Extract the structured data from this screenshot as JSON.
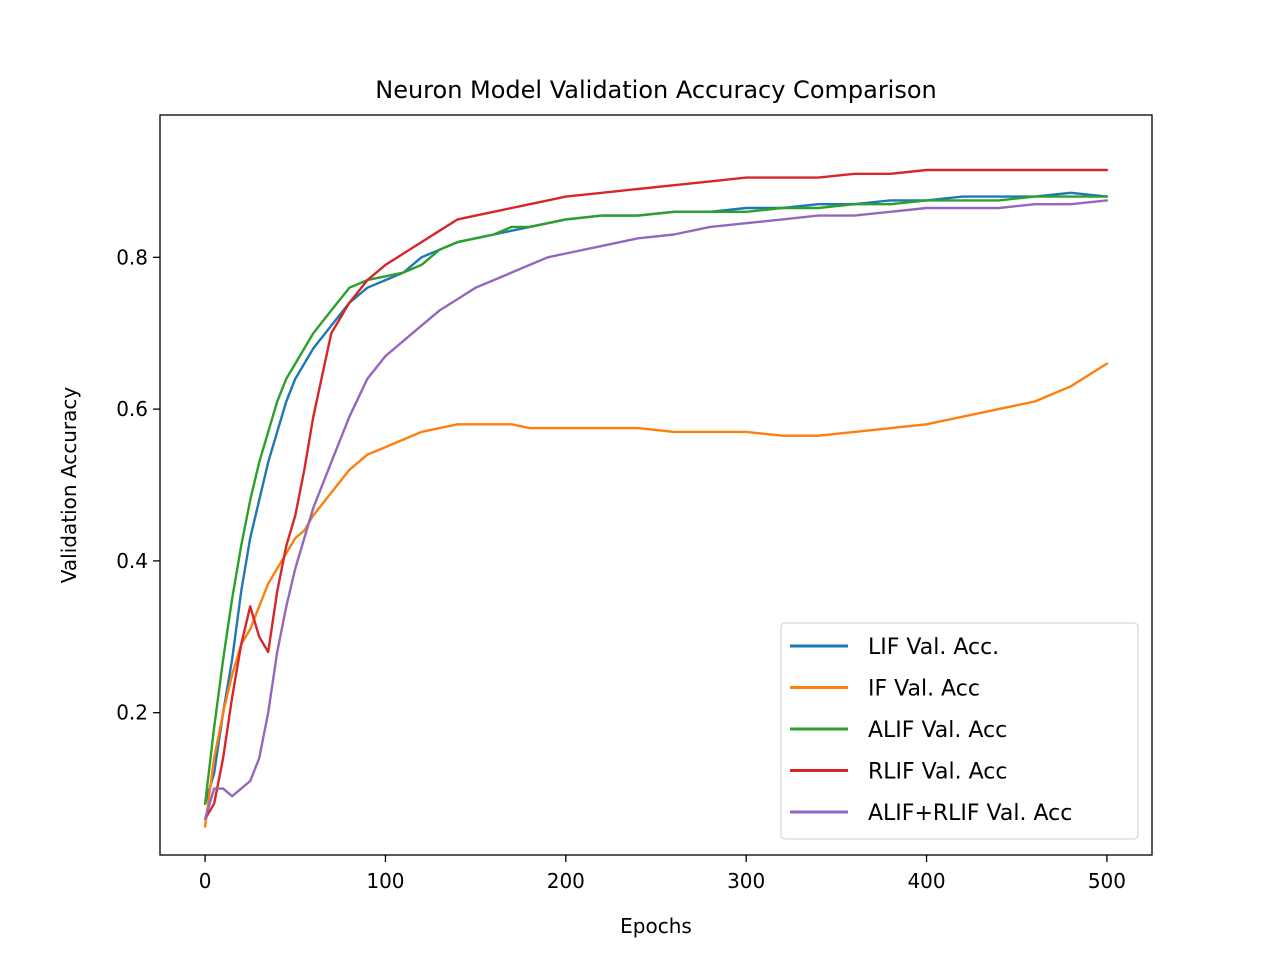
{
  "chart_data": {
    "type": "line",
    "title": "Neuron Model Validation Accuracy Comparison",
    "xlabel": "Epochs",
    "ylabel": "Validation Accuracy",
    "xlim": [
      -25,
      525
    ],
    "ylim": [
      0.0125,
      0.9875
    ],
    "xticks": [
      0,
      100,
      200,
      300,
      400,
      500
    ],
    "xtick_labels": [
      "0",
      "100",
      "200",
      "300",
      "400",
      "500"
    ],
    "yticks": [
      0.2,
      0.4,
      0.6,
      0.8
    ],
    "ytick_labels": [
      "0.2",
      "0.4",
      "0.6",
      "0.8"
    ],
    "grid": false,
    "legend_position": "lower-right",
    "x": [
      0,
      5,
      10,
      15,
      20,
      25,
      30,
      35,
      40,
      45,
      50,
      55,
      60,
      70,
      80,
      90,
      100,
      110,
      120,
      130,
      140,
      150,
      160,
      170,
      180,
      190,
      200,
      220,
      240,
      260,
      280,
      300,
      320,
      340,
      360,
      380,
      400,
      420,
      440,
      460,
      480,
      500
    ],
    "series": [
      {
        "name": "LIF Val. Acc.",
        "color": "#1f77b4",
        "values": [
          0.08,
          0.12,
          0.2,
          0.27,
          0.36,
          0.43,
          0.48,
          0.53,
          0.57,
          0.61,
          0.64,
          0.66,
          0.68,
          0.71,
          0.74,
          0.76,
          0.77,
          0.78,
          0.8,
          0.81,
          0.82,
          0.825,
          0.83,
          0.835,
          0.84,
          0.845,
          0.85,
          0.855,
          0.855,
          0.86,
          0.86,
          0.865,
          0.865,
          0.87,
          0.87,
          0.875,
          0.875,
          0.88,
          0.88,
          0.88,
          0.885,
          0.88
        ]
      },
      {
        "name": "IF Val. Acc",
        "color": "#ff7f0e",
        "values": [
          0.05,
          0.14,
          0.2,
          0.25,
          0.29,
          0.31,
          0.34,
          0.37,
          0.39,
          0.41,
          0.43,
          0.44,
          0.46,
          0.49,
          0.52,
          0.54,
          0.55,
          0.56,
          0.57,
          0.575,
          0.58,
          0.58,
          0.58,
          0.58,
          0.575,
          0.575,
          0.575,
          0.575,
          0.575,
          0.57,
          0.57,
          0.57,
          0.565,
          0.565,
          0.57,
          0.575,
          0.58,
          0.59,
          0.6,
          0.61,
          0.63,
          0.66
        ]
      },
      {
        "name": "ALIF Val. Acc",
        "color": "#2ca02c",
        "values": [
          0.08,
          0.18,
          0.27,
          0.35,
          0.42,
          0.48,
          0.53,
          0.57,
          0.61,
          0.64,
          0.66,
          0.68,
          0.7,
          0.73,
          0.76,
          0.77,
          0.775,
          0.78,
          0.79,
          0.81,
          0.82,
          0.825,
          0.83,
          0.84,
          0.84,
          0.845,
          0.85,
          0.855,
          0.855,
          0.86,
          0.86,
          0.86,
          0.865,
          0.865,
          0.87,
          0.87,
          0.875,
          0.875,
          0.875,
          0.88,
          0.88,
          0.88
        ]
      },
      {
        "name": "RLIF Val. Acc",
        "color": "#d62728",
        "values": [
          0.06,
          0.08,
          0.14,
          0.22,
          0.29,
          0.34,
          0.3,
          0.28,
          0.36,
          0.42,
          0.46,
          0.52,
          0.59,
          0.7,
          0.74,
          0.77,
          0.79,
          0.805,
          0.82,
          0.835,
          0.85,
          0.855,
          0.86,
          0.865,
          0.87,
          0.875,
          0.88,
          0.885,
          0.89,
          0.895,
          0.9,
          0.905,
          0.905,
          0.905,
          0.91,
          0.91,
          0.915,
          0.915,
          0.915,
          0.915,
          0.915,
          0.915
        ]
      },
      {
        "name": "ALIF+RLIF Val. Acc",
        "color": "#9467bd",
        "values": [
          0.06,
          0.1,
          0.1,
          0.09,
          0.1,
          0.11,
          0.14,
          0.2,
          0.28,
          0.34,
          0.39,
          0.43,
          0.47,
          0.53,
          0.59,
          0.64,
          0.67,
          0.69,
          0.71,
          0.73,
          0.745,
          0.76,
          0.77,
          0.78,
          0.79,
          0.8,
          0.805,
          0.815,
          0.825,
          0.83,
          0.84,
          0.845,
          0.85,
          0.855,
          0.855,
          0.86,
          0.865,
          0.865,
          0.865,
          0.87,
          0.87,
          0.875
        ]
      }
    ]
  }
}
